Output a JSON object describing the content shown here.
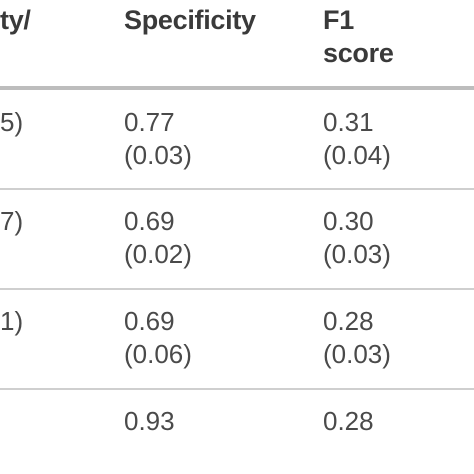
{
  "header": {
    "col0": "ty/",
    "col1": "Specificity",
    "col2": "F1\nscore"
  },
  "rows": [
    {
      "col0": "5)",
      "col1": "0.77\n(0.03)",
      "col2": "0.31\n(0.04)"
    },
    {
      "col0": "7)",
      "col1": "0.69\n(0.02)",
      "col2": "0.30\n(0.03)"
    },
    {
      "col0": "1)",
      "col1": "0.69\n(0.06)",
      "col2": "0.28\n(0.03)"
    },
    {
      "col0": "",
      "col1": "0.93",
      "col2": "0.28"
    }
  ]
}
